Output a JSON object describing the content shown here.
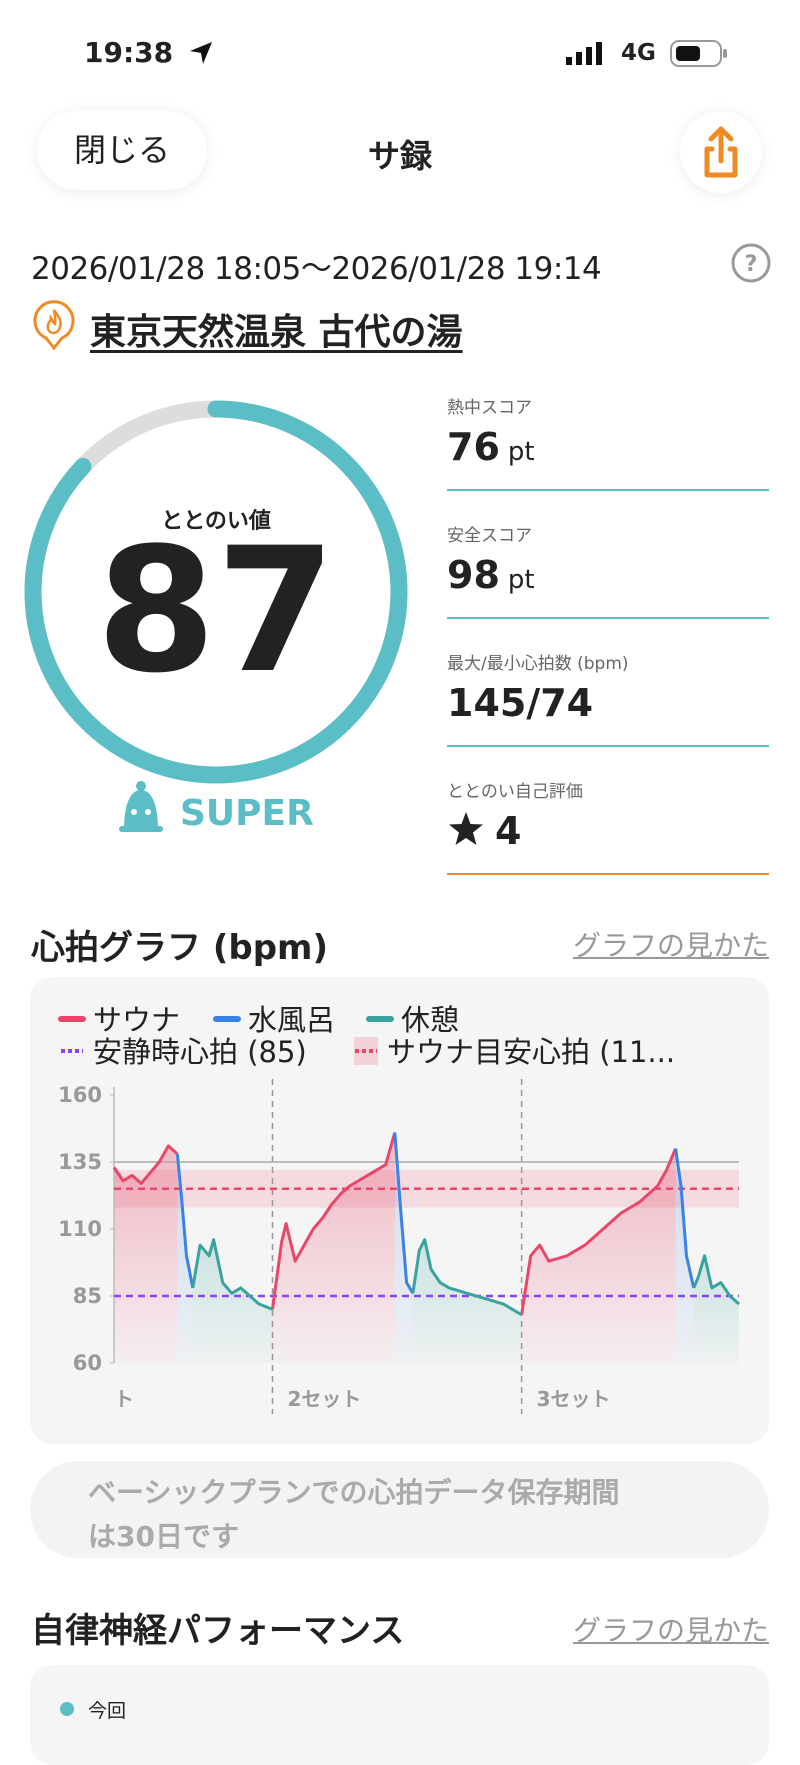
{
  "status_bar": {
    "time": "19:38",
    "network": "4G"
  },
  "header": {
    "close": "閉じる",
    "title": "サ録"
  },
  "session": {
    "period": "2026/01/28 18:05〜2026/01/28 19:14",
    "facility": "東京天然温泉 古代の湯"
  },
  "score": {
    "label": "ととのい値",
    "value": 87,
    "range": [
      0,
      100
    ],
    "rank": "SUPER"
  },
  "metrics": [
    {
      "label": "熱中スコア",
      "value": 76,
      "unit": "pt"
    },
    {
      "label": "安全スコア",
      "value": 98,
      "unit": "pt"
    },
    {
      "label": "最大/最小心拍数 (bpm)",
      "value": "145/74"
    },
    {
      "label": "ととのい自己評価",
      "value": 4
    }
  ],
  "heart_section": {
    "title": "心拍グラフ (bpm)",
    "link": "グラフの見かた"
  },
  "chart_data": {
    "type": "line",
    "x": [
      0,
      1,
      2,
      3,
      4,
      5,
      6,
      7,
      7.5,
      8,
      8.7,
      9.5,
      10.5,
      11,
      12,
      13,
      14,
      15,
      16,
      17.5,
      18.5,
      19,
      20,
      21,
      22,
      23,
      24,
      25,
      26,
      27,
      28,
      29,
      30,
      31,
      31.7,
      32.3,
      33,
      33.7,
      34.3,
      35,
      36,
      37,
      39,
      41,
      43,
      45,
      46,
      47,
      48,
      50,
      52,
      54,
      56,
      58,
      60,
      61,
      62,
      62.6,
      63.2,
      64,
      64.5,
      65.2,
      66,
      67,
      68,
      69
    ],
    "series": [
      {
        "name": "サウナ",
        "color": "#e8476a",
        "values": [
          133,
          128,
          130,
          127,
          131,
          135,
          141,
          138,
          null,
          null,
          null,
          null,
          null,
          null,
          null,
          null,
          null,
          null,
          null,
          80,
          105,
          112,
          98,
          104,
          110,
          114,
          119,
          123,
          126,
          128,
          130,
          132,
          134,
          146,
          null,
          null,
          null,
          null,
          null,
          null,
          null,
          null,
          null,
          null,
          null,
          78,
          100,
          104,
          98,
          100,
          104,
          110,
          116,
          120,
          126,
          132,
          140,
          null,
          null,
          null,
          null,
          null,
          null,
          null,
          null,
          null
        ]
      },
      {
        "name": "水風呂",
        "color": "#3b82e6",
        "values": [
          null,
          null,
          null,
          null,
          null,
          null,
          null,
          138,
          120,
          100,
          88,
          null,
          null,
          null,
          null,
          null,
          null,
          null,
          null,
          null,
          null,
          null,
          null,
          null,
          null,
          null,
          null,
          null,
          null,
          null,
          null,
          null,
          null,
          146,
          115,
          90,
          86,
          null,
          null,
          null,
          null,
          null,
          null,
          null,
          null,
          null,
          null,
          null,
          null,
          null,
          null,
          null,
          null,
          null,
          null,
          null,
          140,
          126,
          100,
          88,
          null,
          null,
          null,
          null,
          null,
          null
        ]
      },
      {
        "name": "休憩",
        "color": "#3aa39d",
        "values": [
          null,
          null,
          null,
          null,
          null,
          null,
          null,
          null,
          null,
          null,
          88,
          104,
          100,
          106,
          90,
          86,
          88,
          85,
          82,
          80,
          null,
          null,
          null,
          null,
          null,
          null,
          null,
          null,
          null,
          null,
          null,
          null,
          null,
          null,
          null,
          null,
          86,
          102,
          106,
          95,
          90,
          88,
          86,
          84,
          82,
          78,
          null,
          null,
          null,
          null,
          null,
          null,
          null,
          null,
          null,
          null,
          null,
          null,
          null,
          88,
          92,
          100,
          88,
          90,
          85,
          82
        ]
      }
    ],
    "reference_lines": [
      {
        "name": "安静時心拍 (85)",
        "value": 85,
        "color": "#8a3ffc",
        "style": "dashed"
      },
      {
        "name": "サウナ目安心拍 (11...",
        "value": 125,
        "band": [
          118,
          132
        ],
        "color": "#e8476a",
        "style": "dashed"
      },
      {
        "value": 135,
        "color": "#aaaaaa",
        "style": "solid"
      }
    ],
    "set_labels": [
      {
        "x": 0,
        "label": "ト"
      },
      {
        "x": 17.5,
        "label": "2セット"
      },
      {
        "x": 45,
        "label": "3セット"
      }
    ],
    "xlim": [
      0,
      69
    ],
    "ylim": [
      60,
      160
    ],
    "yticks": [
      60,
      85,
      110,
      135,
      160
    ]
  },
  "notice_lines": [
    "ベーシックプランでの心拍データ保存期間",
    "は30日です"
  ],
  "ans_section": {
    "title": "自律神経パフォーマンス",
    "link": "グラフの見かた",
    "legend": "今回"
  }
}
